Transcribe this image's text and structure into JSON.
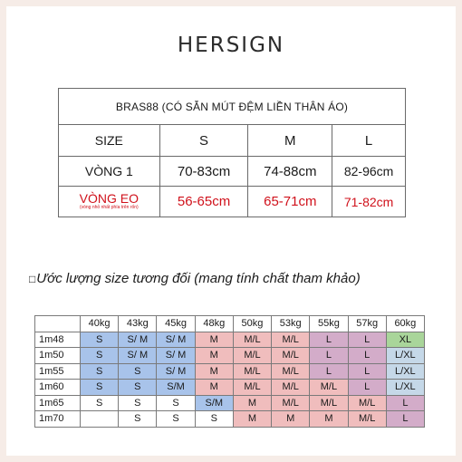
{
  "brand": "HERSIGN",
  "table1": {
    "title": "BRAS88 (CÓ SẴN MÚT ĐỆM LIỀN THÂN ÁO)",
    "header": [
      "SIZE",
      "S",
      "M",
      "L"
    ],
    "vong1": [
      "VÒNG 1",
      "70-83cm",
      "74-88cm",
      "82-96cm"
    ],
    "vongeo_label": "VÒNG EO",
    "vongeo_note": "(vòng nhỏ nhất phía trên rốn)",
    "vongeo": [
      "56-65cm",
      "65-71cm",
      "71-82cm"
    ]
  },
  "note": {
    "box": "□",
    "text": "Ước lượng size tương đối (mang tính chất tham khảo)"
  },
  "table2": {
    "weights": [
      "40kg",
      "43kg",
      "45kg",
      "48kg",
      "50kg",
      "53kg",
      "55kg",
      "57kg",
      "60kg"
    ],
    "rows": [
      {
        "height": "1m48",
        "cells": [
          "S",
          "S/ M",
          "S/ M",
          "M",
          "M/L",
          "M/L",
          "L",
          "L",
          "XL"
        ]
      },
      {
        "height": "1m50",
        "cells": [
          "S",
          "S/ M",
          "S/ M",
          "M",
          "M/L",
          "M/L",
          "L",
          "L",
          "L/XL"
        ]
      },
      {
        "height": "1m55",
        "cells": [
          "S",
          "S",
          "S/ M",
          "M",
          "M/L",
          "M/L",
          "L",
          "L",
          "L/XL"
        ]
      },
      {
        "height": "1m60",
        "cells": [
          "S",
          "S",
          "S/M",
          "M",
          "M/L",
          "M/L",
          "M/L",
          "L",
          "L/XL"
        ]
      },
      {
        "height": "1m65",
        "cells": [
          "S",
          "S",
          "S",
          "S/M",
          "M",
          "M/L",
          "M/L",
          "M/L",
          "L"
        ]
      },
      {
        "height": "1m70",
        "cells": [
          "",
          "S",
          "S",
          "S",
          "M",
          "M",
          "M",
          "M/L",
          "L"
        ]
      }
    ]
  },
  "colors": {
    "page_bg": "#f6ece7",
    "accent_red": "#d0111b",
    "cell_blue": "#a8c3ea",
    "cell_pink": "#f0bdbd",
    "cell_mauve": "#d3acc9",
    "cell_green": "#a9d59a",
    "cell_lightblue": "#c5d8e8"
  }
}
